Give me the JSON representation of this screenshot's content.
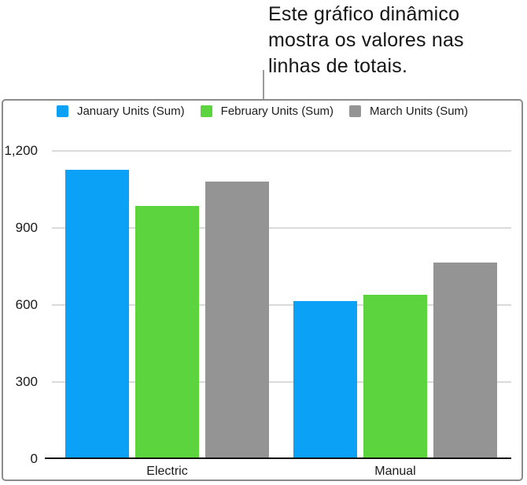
{
  "annotation": {
    "lines": [
      "Este gráfico dinâmico",
      "mostra os valores nas",
      "linhas de totais."
    ]
  },
  "chart_data": {
    "type": "bar",
    "title": "",
    "categories": [
      "Electric",
      "Manual"
    ],
    "series": [
      {
        "name": "January Units (Sum)",
        "color": "#0ba1f7",
        "values": [
          1120,
          610
        ]
      },
      {
        "name": "February Units (Sum)",
        "color": "#5bd43d",
        "values": [
          980,
          635
        ]
      },
      {
        "name": "March Units (Sum)",
        "color": "#949494",
        "values": [
          1075,
          760
        ]
      }
    ],
    "xlabel": "",
    "ylabel": "",
    "ylim": [
      0,
      1200
    ],
    "yticks": [
      0,
      300,
      600,
      900,
      1200
    ],
    "ytick_labels": [
      "0",
      "300",
      "600",
      "900",
      "1,200"
    ],
    "grid": true,
    "legend_position": "top-center"
  },
  "colors": {
    "gridline": "#dadada",
    "axis_line": "#111111",
    "panel_border": "#8b8b8b",
    "annotation_line": "#9b9b9b",
    "text": "#1a1a1a"
  }
}
